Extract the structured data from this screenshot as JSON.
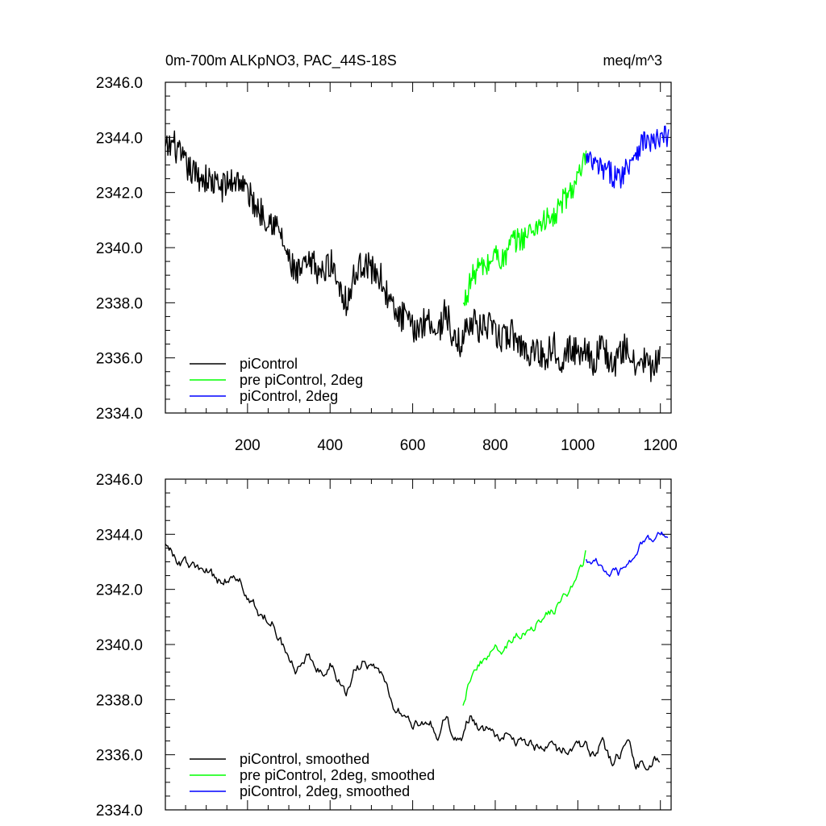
{
  "chart_data": [
    {
      "type": "line",
      "title": "0m-700m ALKpNO3, PAC_44S-18S",
      "units": "meq/m^3",
      "xlim": [
        1,
        1226
      ],
      "ylim": [
        2334,
        2346
      ],
      "yticks": [
        2334,
        2336,
        2338,
        2340,
        2342,
        2344,
        2346
      ],
      "ytick_labels": [
        "2334.0",
        "2336.0",
        "2338.0",
        "2340.0",
        "2342.0",
        "2344.0",
        "2346.0"
      ],
      "xticks": [
        200,
        400,
        600,
        800,
        1000,
        1200
      ],
      "xtick_labels": [
        "200",
        "400",
        "600",
        "800",
        "1000",
        "1200"
      ],
      "grid": false,
      "legend_position": "bottom-left",
      "series": [
        {
          "name": "piControl",
          "color": "#000000",
          "x": [
            1,
            20,
            40,
            60,
            80,
            100,
            120,
            140,
            160,
            180,
            200,
            220,
            240,
            260,
            280,
            300,
            320,
            340,
            360,
            380,
            400,
            420,
            440,
            460,
            480,
            500,
            520,
            540,
            560,
            580,
            600,
            620,
            640,
            660,
            680,
            700,
            720,
            740,
            760,
            780,
            800,
            820,
            840,
            860,
            880,
            900,
            920,
            940,
            960,
            980,
            1000,
            1020,
            1040,
            1060,
            1080,
            1100,
            1120,
            1140,
            1160,
            1180,
            1200
          ],
          "y": [
            2343.5,
            2343.8,
            2343.2,
            2342.8,
            2342.6,
            2342.5,
            2342.3,
            2342.2,
            2342.4,
            2342.5,
            2342.0,
            2341.5,
            2341.2,
            2341.0,
            2340.5,
            2339.5,
            2339.0,
            2339.3,
            2339.4,
            2339.0,
            2339.5,
            2338.8,
            2338.0,
            2339.0,
            2339.5,
            2339.2,
            2339.0,
            2338.2,
            2337.5,
            2337.5,
            2337.0,
            2337.2,
            2337.5,
            2336.8,
            2337.8,
            2336.5,
            2336.6,
            2337.5,
            2337.0,
            2337.2,
            2336.8,
            2336.7,
            2336.9,
            2336.5,
            2336.2,
            2336.3,
            2336.0,
            2336.5,
            2336.0,
            2336.3,
            2336.2,
            2336.4,
            2335.8,
            2336.6,
            2335.7,
            2336.0,
            2336.5,
            2335.5,
            2336.0,
            2335.5,
            2336.0
          ],
          "noise": 0.55
        },
        {
          "name": "pre piControl, 2deg",
          "color": "#00ff00",
          "x": [
            722,
            740,
            760,
            780,
            800,
            820,
            840,
            860,
            880,
            900,
            920,
            940,
            960,
            980,
            1000,
            1010,
            1020
          ],
          "y": [
            2337.8,
            2338.8,
            2339.3,
            2339.3,
            2339.8,
            2339.5,
            2340.2,
            2340.3,
            2340.5,
            2340.8,
            2341.0,
            2341.0,
            2341.6,
            2342.0,
            2342.5,
            2342.8,
            2343.3
          ],
          "noise": 0.45
        },
        {
          "name": "piControl, 2deg",
          "color": "#0000ff",
          "x": [
            1020,
            1040,
            1060,
            1080,
            1100,
            1120,
            1140,
            1160,
            1180,
            1200,
            1220
          ],
          "y": [
            2343.2,
            2343.0,
            2342.8,
            2342.7,
            2342.5,
            2343.0,
            2343.5,
            2343.9,
            2343.8,
            2343.9,
            2344.1
          ],
          "noise": 0.45
        }
      ]
    },
    {
      "type": "line",
      "title": "",
      "units": "",
      "xlim": [
        1,
        1226
      ],
      "ylim": [
        2334,
        2346
      ],
      "yticks": [
        2334,
        2336,
        2338,
        2340,
        2342,
        2344,
        2346
      ],
      "ytick_labels": [
        "2334.0",
        "2336.0",
        "2338.0",
        "2340.0",
        "2342.0",
        "2344.0",
        "2346.0"
      ],
      "xticks": [
        200,
        400,
        600,
        800,
        1000,
        1200
      ],
      "xtick_labels": [],
      "grid": false,
      "legend_position": "bottom-left",
      "series": [
        {
          "name": "piControl, smoothed",
          "color": "#000000",
          "x": [
            1,
            20,
            40,
            60,
            80,
            100,
            120,
            140,
            160,
            180,
            200,
            220,
            240,
            260,
            280,
            300,
            320,
            340,
            360,
            380,
            400,
            420,
            440,
            460,
            480,
            500,
            520,
            540,
            560,
            580,
            600,
            620,
            640,
            660,
            680,
            700,
            720,
            740,
            760,
            780,
            800,
            820,
            840,
            860,
            880,
            900,
            920,
            940,
            960,
            980,
            1000,
            1020,
            1040,
            1060,
            1080,
            1100,
            1120,
            1140,
            1160,
            1180,
            1200
          ],
          "y": [
            2343.8,
            2343.2,
            2343.0,
            2342.8,
            2342.7,
            2342.6,
            2342.4,
            2342.2,
            2342.5,
            2342.3,
            2341.8,
            2341.3,
            2341.0,
            2340.8,
            2340.3,
            2339.5,
            2339.0,
            2339.4,
            2339.5,
            2339.0,
            2339.4,
            2338.8,
            2338.2,
            2339.0,
            2339.3,
            2339.2,
            2339.0,
            2338.3,
            2337.6,
            2337.4,
            2337.0,
            2337.2,
            2337.3,
            2336.8,
            2337.4,
            2336.4,
            2336.5,
            2337.5,
            2337.0,
            2337.0,
            2336.8,
            2336.7,
            2336.8,
            2336.5,
            2336.3,
            2336.2,
            2336.1,
            2336.4,
            2336.0,
            2336.2,
            2336.1,
            2336.3,
            2335.9,
            2336.4,
            2335.8,
            2336.0,
            2336.5,
            2335.7,
            2335.8,
            2335.6,
            2336.0
          ],
          "noise": 0.3
        },
        {
          "name": "pre piControl, 2deg, smoothed",
          "color": "#00ff00",
          "x": [
            722,
            740,
            760,
            780,
            800,
            820,
            840,
            860,
            880,
            900,
            920,
            940,
            960,
            980,
            1000,
            1010,
            1020
          ],
          "y": [
            2337.9,
            2338.9,
            2339.3,
            2339.5,
            2339.8,
            2339.6,
            2340.2,
            2340.4,
            2340.6,
            2340.8,
            2341.0,
            2341.2,
            2341.6,
            2341.9,
            2342.4,
            2342.8,
            2343.3
          ],
          "noise": 0.25
        },
        {
          "name": "piControl, 2deg, smoothed",
          "color": "#0000ff",
          "x": [
            1020,
            1040,
            1060,
            1080,
            1100,
            1120,
            1140,
            1160,
            1180,
            1200,
            1220
          ],
          "y": [
            2343.2,
            2343.0,
            2342.8,
            2342.6,
            2342.5,
            2342.9,
            2343.4,
            2343.8,
            2343.9,
            2343.9,
            2344.1
          ],
          "noise": 0.25
        }
      ]
    }
  ]
}
